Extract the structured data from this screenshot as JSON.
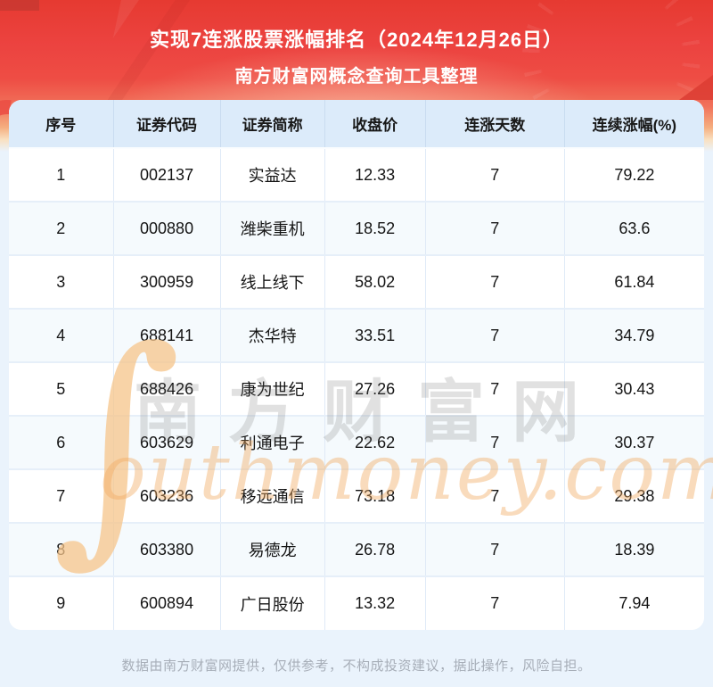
{
  "banner": {
    "title": "实现7连涨股票涨幅排名（2024年12月26日）",
    "subtitle": "南方财富网概念查询工具整理"
  },
  "chart_data": {
    "type": "table",
    "title": "实现7连涨股票涨幅排名（2024年12月26日）",
    "subtitle": "南方财富网概念查询工具整理",
    "columns": [
      "序号",
      "证券代码",
      "证券简称",
      "收盘价",
      "连涨天数",
      "连续涨幅(%)"
    ],
    "rows": [
      [
        "1",
        "002137",
        "实益达",
        "12.33",
        "7",
        "79.22"
      ],
      [
        "2",
        "000880",
        "潍柴重机",
        "18.52",
        "7",
        "63.6"
      ],
      [
        "3",
        "300959",
        "线上线下",
        "58.02",
        "7",
        "61.84"
      ],
      [
        "4",
        "688141",
        "杰华特",
        "33.51",
        "7",
        "34.79"
      ],
      [
        "5",
        "688426",
        "康为世纪",
        "27.26",
        "7",
        "30.43"
      ],
      [
        "6",
        "603629",
        "利通电子",
        "22.62",
        "7",
        "30.37"
      ],
      [
        "7",
        "603236",
        "移远通信",
        "73.18",
        "7",
        "29.38"
      ],
      [
        "8",
        "603380",
        "易德龙",
        "26.78",
        "7",
        "18.39"
      ],
      [
        "9",
        "600894",
        "广日股份",
        "13.32",
        "7",
        "7.94"
      ]
    ]
  },
  "watermark": {
    "swoosh_glyph": "∫",
    "cn_text": "南方财富网",
    "en_text": "outhmoney.com"
  },
  "footer": {
    "disclaimer": "数据由南方财富网提供，仅供参考，不构成投资建议，据此操作，风险自担。"
  },
  "colors": {
    "banner_red": "#ee4440",
    "banner_fade_sand": "#f6c28b",
    "page_bg": "#eaf3fc",
    "table_header_bg": "#dcebfa",
    "row_alt_bg": "#f5fafd",
    "grid_line": "#dfeaf7",
    "cell_text": "#151515",
    "watermark_orange": "#f0a95f",
    "watermark_gray": "#696969",
    "footer_text": "#a7aeb8"
  }
}
